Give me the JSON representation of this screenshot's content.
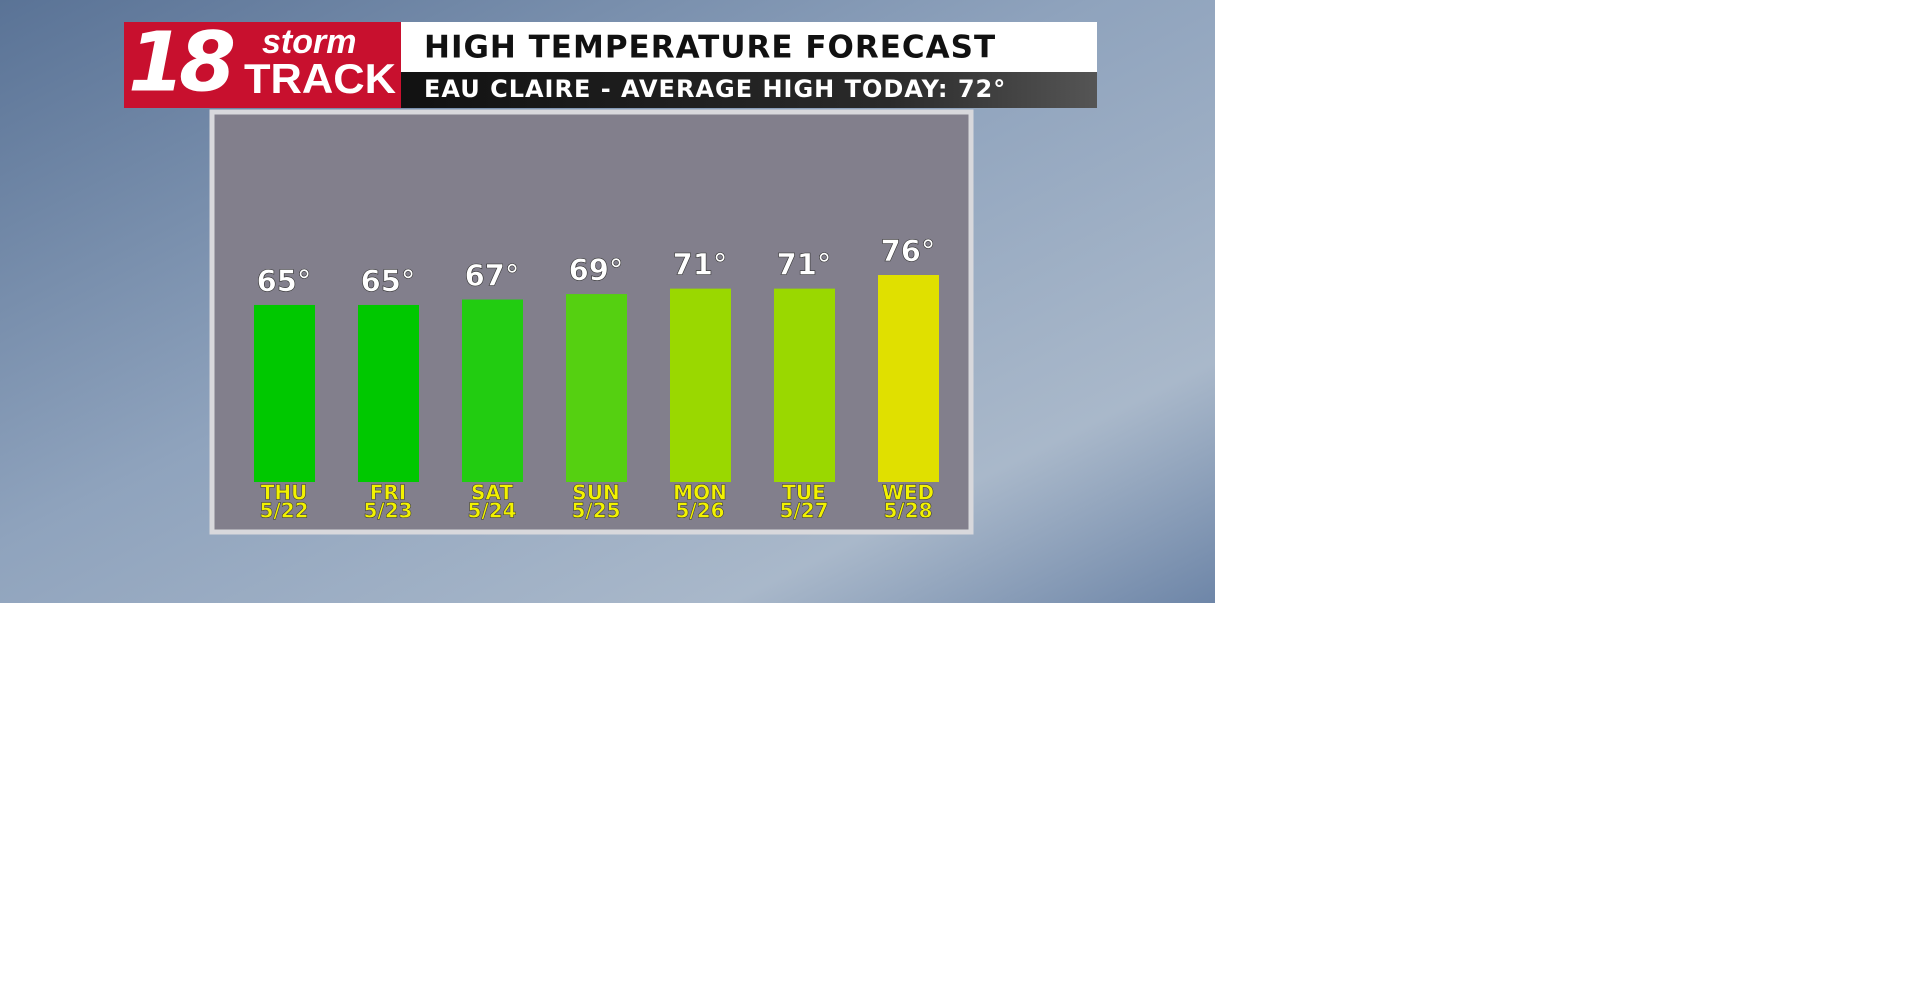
{
  "logo": {
    "number": "18",
    "top": "storm",
    "bottom": "TRACK"
  },
  "chart_data": {
    "type": "bar",
    "title": "HIGH TEMPERATURE FORECAST",
    "subtitle": "EAU CLAIRE - AVERAGE HIGH TODAY: 72°",
    "categories": [
      [
        "THU",
        "5/22"
      ],
      [
        "FRI",
        "5/23"
      ],
      [
        "SAT",
        "5/24"
      ],
      [
        "SUN",
        "5/25"
      ],
      [
        "MON",
        "5/26"
      ],
      [
        "TUE",
        "5/27"
      ],
      [
        "WED",
        "5/28"
      ]
    ],
    "values": [
      65,
      65,
      67,
      69,
      71,
      71,
      76
    ],
    "value_labels": [
      "65°",
      "65°",
      "67°",
      "69°",
      "71°",
      "71°",
      "76°"
    ],
    "colors": [
      "#00c800",
      "#00c800",
      "#22cc11",
      "#55d011",
      "#9ad800",
      "#9ad800",
      "#e0e000"
    ]
  }
}
